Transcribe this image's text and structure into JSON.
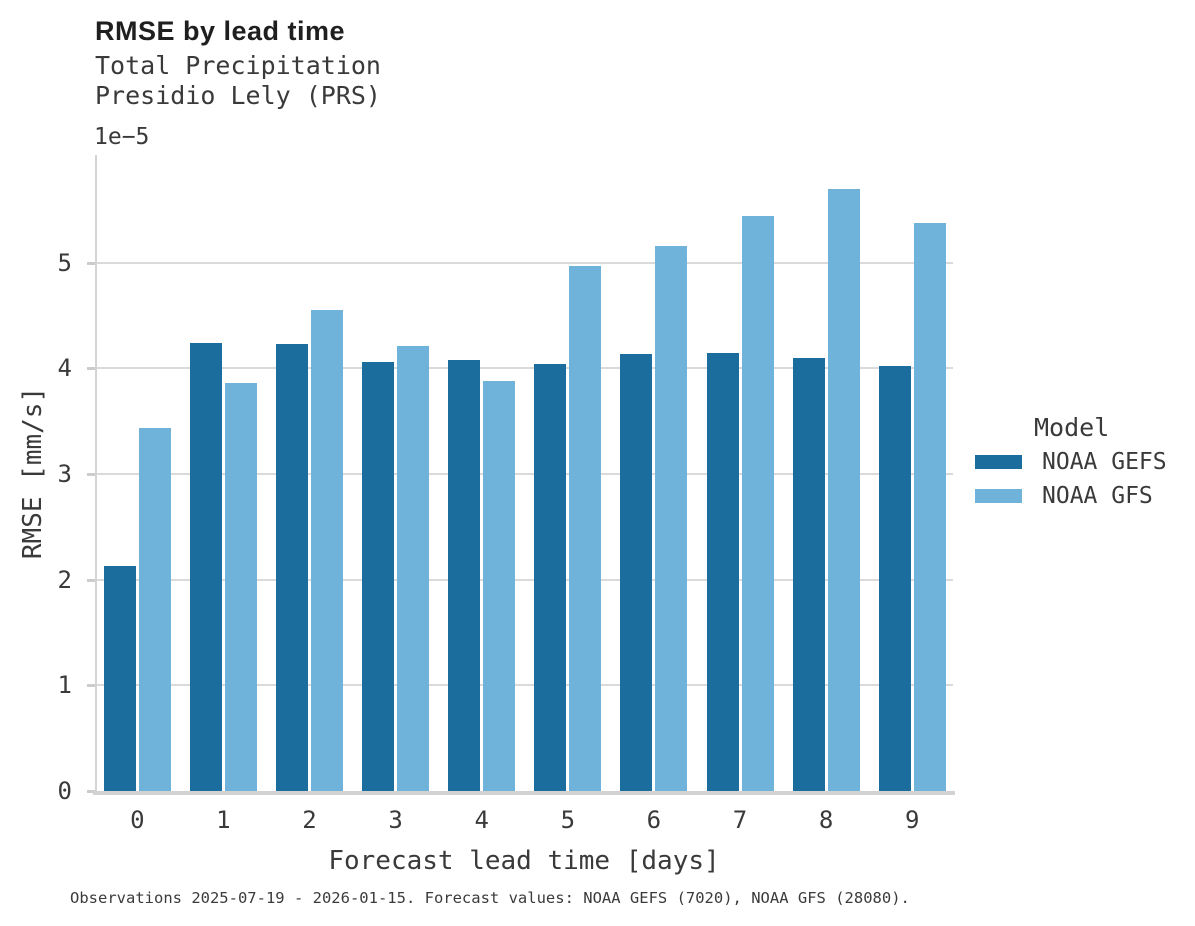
{
  "header": {
    "title": "RMSE by lead time",
    "subtitle_line1": "Total Precipitation",
    "subtitle_line2": "Presidio Lely (PRS)"
  },
  "axes": {
    "offset_label": "1e−5",
    "xlabel": "Forecast lead time [days]",
    "ylabel": "RMSE [mm/s]"
  },
  "legend": {
    "title": "Model",
    "entries": [
      {
        "label": "NOAA GEFS",
        "color": "#1b6d9e"
      },
      {
        "label": "NOAA GFS",
        "color": "#6fb2da"
      }
    ]
  },
  "caption": "Observations 2025-07-19 - 2026-01-15. Forecast values: NOAA GEFS (7020), NOAA GFS (28080).",
  "chart_data": {
    "type": "bar",
    "title": "RMSE by lead time",
    "subtitle": [
      "Total Precipitation",
      "Presidio Lely (PRS)"
    ],
    "categories": [
      "0",
      "1",
      "2",
      "3",
      "4",
      "5",
      "6",
      "7",
      "8",
      "9"
    ],
    "series": [
      {
        "name": "NOAA GEFS",
        "color": "#1b6d9e",
        "values": [
          2.13,
          4.24,
          4.23,
          4.06,
          4.08,
          4.04,
          4.14,
          4.15,
          4.1,
          4.02
        ]
      },
      {
        "name": "NOAA GFS",
        "color": "#6fb2da",
        "values": [
          3.44,
          3.86,
          4.55,
          4.21,
          3.88,
          4.97,
          5.16,
          5.44,
          5.7,
          5.38
        ]
      }
    ],
    "value_scale": "1e-5",
    "value_unit": "mm/s",
    "xlabel": "Forecast lead time [days]",
    "ylabel": "RMSE [mm/s]",
    "ylim": [
      0,
      6.02
    ],
    "yticks": [
      0,
      1,
      2,
      3,
      4,
      5
    ],
    "grid": "horizontal",
    "legend_title": "Model",
    "legend_position": "right"
  }
}
